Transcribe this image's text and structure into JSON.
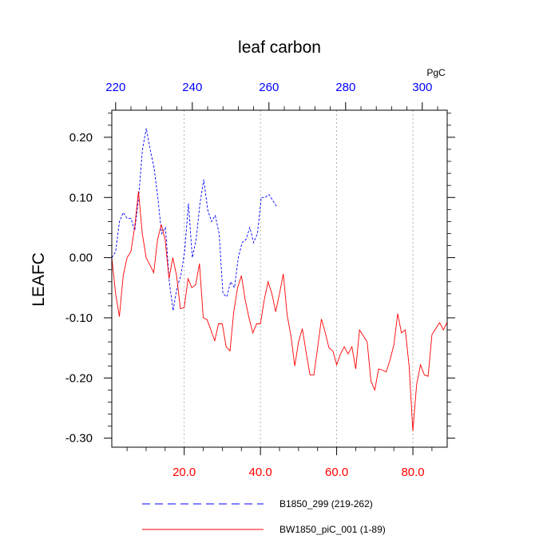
{
  "chart_data": {
    "type": "line",
    "title": "leaf carbon",
    "ylabel": "LEAFC",
    "top_axis_unit": "PgC",
    "ylim": [
      -0.315,
      0.245
    ],
    "bottom_xlim": [
      1,
      89
    ],
    "top_xlim": [
      219,
      306.5
    ],
    "y_ticks": [
      0.2,
      0.1,
      0.0,
      -0.1,
      -0.2,
      -0.3
    ],
    "y_tick_labels": [
      "0.20",
      "0.10",
      "0.00",
      "-0.10",
      "-0.20",
      "-0.30"
    ],
    "bottom_ticks": [
      20,
      40,
      60,
      80
    ],
    "bottom_tick_labels": [
      "20.0",
      "40.0",
      "60.0",
      "80.0"
    ],
    "top_ticks": [
      220,
      240,
      260,
      280,
      300
    ],
    "top_tick_labels": [
      "220",
      "240",
      "260",
      "280",
      "300"
    ],
    "grid": "vertical dotted at bottom-axis ticks",
    "series": [
      {
        "name": "B1850_299 (219-262)",
        "axis": "top",
        "color": "#0000ff",
        "dash": "dashed",
        "x": [
          219,
          220,
          221,
          222,
          223,
          224,
          225,
          226,
          227,
          228,
          229,
          230,
          231,
          232,
          233,
          234,
          235,
          236,
          237,
          238,
          239,
          240,
          241,
          242,
          243,
          244,
          245,
          246,
          247,
          248,
          249,
          250,
          251,
          252,
          253,
          254,
          255,
          256,
          257,
          258,
          259,
          260,
          261,
          262
        ],
        "y": [
          0.0,
          0.01,
          0.06,
          0.075,
          0.065,
          0.065,
          0.045,
          0.1,
          0.18,
          0.215,
          0.18,
          0.15,
          0.1,
          0.04,
          0.05,
          -0.04,
          -0.088,
          -0.05,
          -0.03,
          0.01,
          0.09,
          0.0,
          0.03,
          0.09,
          0.13,
          0.08,
          0.06,
          0.07,
          0.04,
          -0.06,
          -0.065,
          -0.04,
          -0.05,
          0.0,
          0.025,
          0.03,
          0.05,
          0.025,
          0.04,
          0.1,
          0.1,
          0.105,
          0.095,
          0.085
        ]
      },
      {
        "name": "BW1850_piC_001 (1-89)",
        "axis": "bottom",
        "color": "#ff0000",
        "dash": "solid",
        "x": [
          1,
          2,
          3,
          4,
          5,
          6,
          7,
          8,
          9,
          10,
          11,
          12,
          13,
          14,
          15,
          16,
          17,
          18,
          19,
          20,
          21,
          22,
          23,
          24,
          25,
          26,
          27,
          28,
          29,
          30,
          31,
          32,
          33,
          34,
          35,
          36,
          37,
          38,
          39,
          40,
          41,
          42,
          43,
          44,
          45,
          46,
          47,
          48,
          49,
          50,
          51,
          52,
          53,
          54,
          55,
          56,
          57,
          58,
          59,
          60,
          61,
          62,
          63,
          64,
          65,
          66,
          67,
          68,
          69,
          70,
          71,
          72,
          73,
          74,
          75,
          76,
          77,
          78,
          79,
          80,
          81,
          82,
          83,
          84,
          85,
          86,
          87,
          88,
          89
        ],
        "y": [
          0.0,
          -0.06,
          -0.098,
          -0.03,
          0.0,
          0.01,
          0.05,
          0.11,
          0.04,
          0.0,
          -0.012,
          -0.025,
          0.03,
          0.055,
          0.03,
          -0.035,
          0.0,
          -0.03,
          -0.085,
          -0.083,
          -0.035,
          -0.05,
          -0.045,
          -0.01,
          -0.1,
          -0.103,
          -0.12,
          -0.138,
          -0.11,
          -0.11,
          -0.148,
          -0.155,
          -0.09,
          -0.05,
          -0.03,
          -0.07,
          -0.1,
          -0.125,
          -0.11,
          -0.11,
          -0.07,
          -0.04,
          -0.06,
          -0.09,
          -0.06,
          -0.027,
          -0.095,
          -0.13,
          -0.18,
          -0.14,
          -0.118,
          -0.158,
          -0.195,
          -0.195,
          -0.15,
          -0.102,
          -0.125,
          -0.15,
          -0.155,
          -0.178,
          -0.16,
          -0.148,
          -0.16,
          -0.148,
          -0.185,
          -0.12,
          -0.13,
          -0.14,
          -0.205,
          -0.22,
          -0.185,
          -0.187,
          -0.19,
          -0.17,
          -0.145,
          -0.093,
          -0.125,
          -0.12,
          -0.18,
          -0.288,
          -0.21,
          -0.178,
          -0.195,
          -0.197,
          -0.128,
          -0.118,
          -0.108,
          -0.12,
          -0.107
        ]
      }
    ],
    "legend": {
      "placement": "bottom",
      "entries": [
        "B1850_299 (219-262)",
        "BW1850_piC_001 (1-89)"
      ]
    }
  }
}
